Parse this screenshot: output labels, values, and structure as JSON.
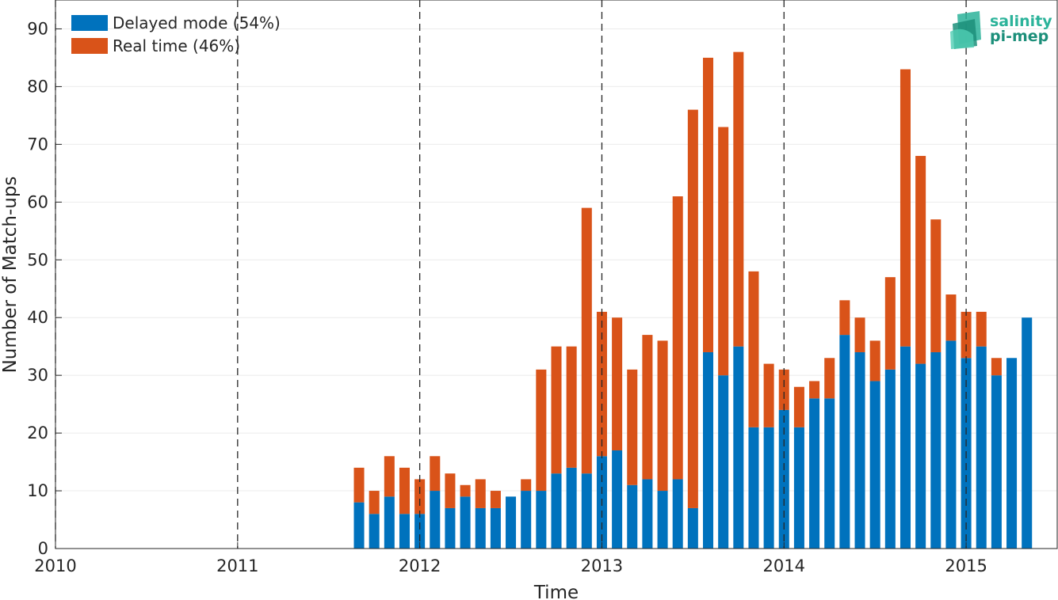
{
  "chart_data": {
    "type": "bar",
    "stacked": true,
    "xlabel": "Time",
    "ylabel": "Number of Match-ups",
    "ylim": [
      0,
      95
    ],
    "xlim": [
      2010,
      2015.5
    ],
    "yticks": [
      0,
      10,
      20,
      30,
      40,
      50,
      60,
      70,
      80,
      90
    ],
    "xticks": [
      2010,
      2011,
      2012,
      2013,
      2014,
      2015
    ],
    "year_markers": [
      2010,
      2011,
      2012,
      2013,
      2014,
      2015
    ],
    "grid": true,
    "legend_position": "top-left",
    "months": [
      "2011-09",
      "2011-10",
      "2011-11",
      "2011-12",
      "2012-01",
      "2012-02",
      "2012-03",
      "2012-04",
      "2012-05",
      "2012-06",
      "2012-07",
      "2012-08",
      "2012-09",
      "2012-10",
      "2012-11",
      "2012-12",
      "2013-01",
      "2013-02",
      "2013-03",
      "2013-04",
      "2013-05",
      "2013-06",
      "2013-07",
      "2013-08",
      "2013-09",
      "2013-10",
      "2013-11",
      "2013-12",
      "2014-01",
      "2014-02",
      "2014-03",
      "2014-04",
      "2014-05",
      "2014-06",
      "2014-07",
      "2014-08",
      "2014-09",
      "2014-10",
      "2014-11",
      "2014-12",
      "2015-01",
      "2015-02",
      "2015-03",
      "2015-04",
      "2015-05",
      "2015-06"
    ],
    "series": [
      {
        "name": "Delayed mode (54%)",
        "color": "#0072BD",
        "values": [
          8,
          6,
          9,
          6,
          6,
          10,
          7,
          9,
          7,
          7,
          9,
          10,
          10,
          13,
          14,
          13,
          16,
          17,
          11,
          12,
          10,
          12,
          7,
          34,
          30,
          35,
          21,
          21,
          24,
          21,
          26,
          26,
          37,
          34,
          29,
          31,
          35,
          32,
          34,
          36,
          33,
          35,
          30,
          33,
          40,
          null
        ]
      },
      {
        "name": "Real time (46%)",
        "color": "#D95319",
        "values": [
          6,
          4,
          7,
          8,
          6,
          6,
          6,
          2,
          5,
          3,
          0,
          2,
          21,
          22,
          21,
          46,
          25,
          23,
          20,
          25,
          26,
          49,
          69,
          51,
          43,
          51,
          27,
          11,
          7,
          7,
          3,
          7,
          6,
          6,
          7,
          16,
          48,
          36,
          23,
          8,
          8,
          6,
          3,
          0,
          0,
          null
        ]
      }
    ],
    "totals": [
      14,
      10,
      16,
      14,
      12,
      16,
      13,
      11,
      12,
      10,
      9,
      12,
      31,
      35,
      35,
      59,
      41,
      40,
      31,
      37,
      36,
      61,
      76,
      85,
      73,
      86,
      48,
      32,
      31,
      28,
      29,
      33,
      43,
      40,
      36,
      47,
      83,
      68,
      57,
      44,
      41,
      41,
      33,
      33,
      40,
      null
    ]
  },
  "logo": {
    "line1": "salinity",
    "line2": "pi-mep"
  }
}
